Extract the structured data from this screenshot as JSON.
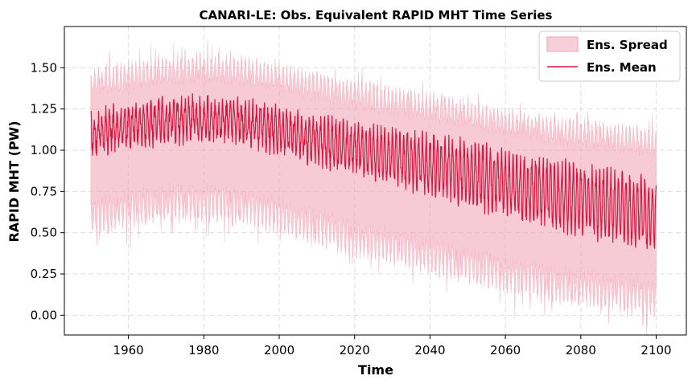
{
  "chart_data": {
    "type": "line",
    "title": "CANARI-LE: Obs. Equivalent RAPID MHT Time Series",
    "xlabel": "Time",
    "ylabel": "RAPID MHT (PW)",
    "xlim": [
      1943,
      2108
    ],
    "ylim": [
      -0.12,
      1.75
    ],
    "x_ticks": [
      1960,
      1980,
      2000,
      2020,
      2040,
      2060,
      2080,
      2100
    ],
    "y_ticks": [
      0.0,
      0.25,
      0.5,
      0.75,
      1.0,
      1.25,
      1.5
    ],
    "y_tick_labels": [
      "0.00",
      "0.25",
      "0.50",
      "0.75",
      "1.00",
      "1.25",
      "1.50"
    ],
    "grid": true,
    "legend_position": "top-right",
    "series": [
      {
        "name": "Ens. Mean",
        "kind": "line",
        "color": "#dc143c",
        "x": [
          1950,
          1960,
          1970,
          1980,
          1990,
          2000,
          2010,
          2020,
          2030,
          2040,
          2050,
          2060,
          2070,
          2080,
          2090,
          2100
        ],
        "values": [
          1.1,
          1.15,
          1.18,
          1.19,
          1.17,
          1.12,
          1.06,
          1.01,
          0.96,
          0.91,
          0.86,
          0.8,
          0.75,
          0.7,
          0.66,
          0.6
        ],
        "seasonal_amplitude": [
          0.1,
          0.1,
          0.1,
          0.1,
          0.1,
          0.11,
          0.12,
          0.13,
          0.14,
          0.15,
          0.16,
          0.17,
          0.17,
          0.18,
          0.18,
          0.18
        ]
      },
      {
        "name": "Ens. Spread",
        "kind": "band",
        "color": "#f0a0b4",
        "x": [
          1950,
          1960,
          1970,
          1980,
          1990,
          2000,
          2010,
          2020,
          2030,
          2040,
          2050,
          2060,
          2070,
          2080,
          2090,
          2100
        ],
        "lower": [
          0.62,
          0.68,
          0.72,
          0.72,
          0.7,
          0.64,
          0.57,
          0.5,
          0.45,
          0.4,
          0.34,
          0.28,
          0.24,
          0.2,
          0.17,
          0.14
        ],
        "upper": [
          1.38,
          1.42,
          1.45,
          1.47,
          1.45,
          1.41,
          1.36,
          1.31,
          1.27,
          1.23,
          1.19,
          1.14,
          1.1,
          1.07,
          1.04,
          1.02
        ]
      }
    ]
  },
  "colors": {
    "mean_line": "#dc143c",
    "spread_fill": "#f0a0b4",
    "grid": "#dddddd"
  }
}
